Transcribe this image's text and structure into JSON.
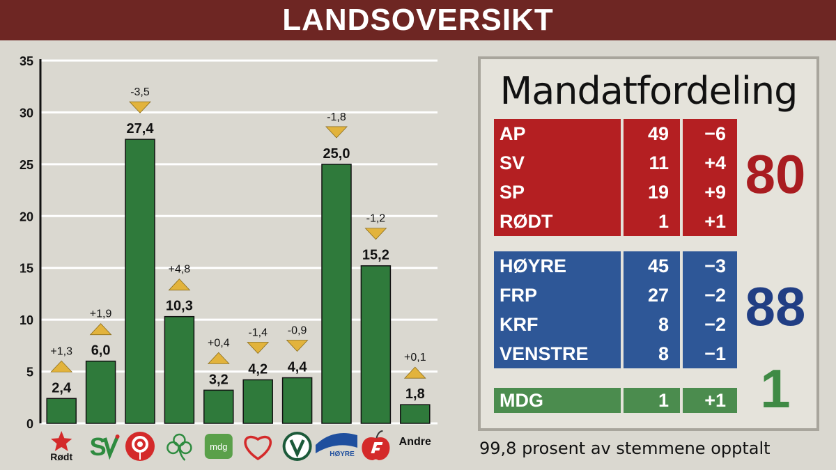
{
  "header": {
    "title": "LANDSOVERSIKT"
  },
  "chart_data": {
    "type": "bar",
    "categories": [
      "Rødt",
      "SV",
      "AP",
      "SP",
      "MDG",
      "KrF",
      "Venstre",
      "Høyre",
      "FrP",
      "Andre"
    ],
    "category_labels": [
      "Rødt",
      "",
      "",
      "",
      "mdg",
      "",
      "",
      "HØYRE",
      "",
      "Andre"
    ],
    "values": [
      2.4,
      6.0,
      27.4,
      10.3,
      3.2,
      4.2,
      4.4,
      25.0,
      15.2,
      1.8
    ],
    "value_labels": [
      "2,4",
      "6,0",
      "27,4",
      "10,3",
      "3,2",
      "4,2",
      "4,4",
      "25,0",
      "15,2",
      "1,8"
    ],
    "changes": [
      1.3,
      1.9,
      -3.5,
      4.8,
      0.4,
      -1.4,
      -0.9,
      -1.8,
      -1.2,
      0.1
    ],
    "change_labels": [
      "+1,3",
      "+1,9",
      "-3,5",
      "+4,8",
      "+0,4",
      "-1,4",
      "-0,9",
      "-1,8",
      "-1,2",
      "+0,1"
    ],
    "ylim": [
      0,
      35
    ],
    "yticks": [
      "0",
      "5",
      "10",
      "15",
      "20",
      "25",
      "30",
      "35"
    ],
    "grid": true,
    "colors": {
      "bar": "#2f7a3b",
      "bar_edge": "#111111",
      "arrow": "#e2b33c",
      "grid": "#ffffff"
    }
  },
  "logos": [
    {
      "icon": "rodt-star-icon",
      "color": "#d42a2a"
    },
    {
      "icon": "sv-icon",
      "color": "#2e8b3f",
      "accent": "#d42a2a"
    },
    {
      "icon": "rose-icon",
      "color": "#d42a2a"
    },
    {
      "icon": "clover-icon",
      "color": "#2e8b3f"
    },
    {
      "icon": "mdg-icon",
      "color": "#5aa04a"
    },
    {
      "icon": "krf-heart-icon",
      "color": "#d42a2a"
    },
    {
      "icon": "venstre-v-icon",
      "color": "#1c5a3a"
    },
    {
      "icon": "hoyre-wave-icon",
      "color": "#1f4f9e"
    },
    {
      "icon": "frp-apple-icon",
      "color": "#d42a2a"
    },
    {
      "icon": "andre-text",
      "color": "#111111"
    }
  ],
  "seats": {
    "title": "Mandatfordeling",
    "groups": [
      {
        "color": "#b41f22",
        "total": "80",
        "total_color": "#a91c20",
        "rows": [
          {
            "party": "AP",
            "seats": "49",
            "change": "−6"
          },
          {
            "party": "SV",
            "seats": "11",
            "change": "+4"
          },
          {
            "party": "SP",
            "seats": "19",
            "change": "+9"
          },
          {
            "party": "RØDT",
            "seats": "1",
            "change": "+1"
          }
        ]
      },
      {
        "color": "#2e5797",
        "total": "88",
        "total_color": "#213e84",
        "rows": [
          {
            "party": "HØYRE",
            "seats": "45",
            "change": "−3"
          },
          {
            "party": "FRP",
            "seats": "27",
            "change": "−2"
          },
          {
            "party": "KRF",
            "seats": "8",
            "change": "−2"
          },
          {
            "party": "VENSTRE",
            "seats": "8",
            "change": "−1"
          }
        ]
      },
      {
        "color": "#4b8c4e",
        "total": "1",
        "total_color": "#3f8a45",
        "rows": [
          {
            "party": "MDG",
            "seats": "1",
            "change": "+1"
          }
        ]
      }
    ]
  },
  "footnote": "99,8 prosent av stemmene opptalt"
}
